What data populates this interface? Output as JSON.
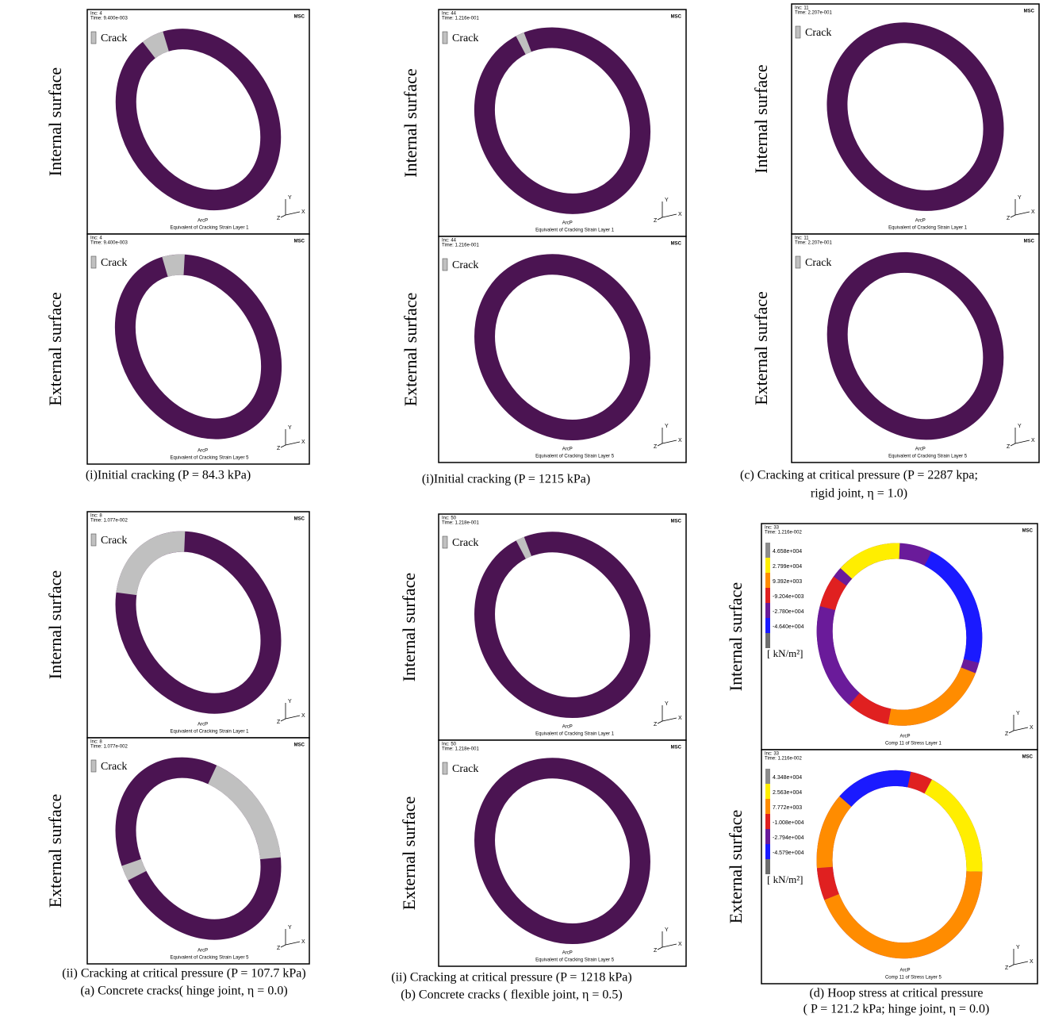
{
  "figure": {
    "side_labels": {
      "internal": "Internal surface",
      "external": "External surface"
    },
    "triad": [
      "Y",
      "X",
      "Z"
    ],
    "groups": [
      {
        "captions": [
          "(i)Initial cracking (P = 84.3 kPa)"
        ],
        "panels": [
          {
            "inc": "Inc: 4",
            "time": "Time: 9.400e-003",
            "legend": "Crack",
            "model": "ArcP",
            "subtitle": "Equivalent of Cracking Strain Layer 1",
            "logo": "MSC"
          },
          {
            "inc": "Inc: 4",
            "time": "Time: 9.400e-003",
            "legend": "Crack",
            "model": "ArcP",
            "subtitle": "Equivalent of Cracking Strain Layer 5",
            "logo": "MSC"
          }
        ]
      },
      {
        "captions": [
          "(i)Initial cracking (P = 1215 kPa)"
        ],
        "panels": [
          {
            "inc": "Inc: 44",
            "time": "Time: 1.216e-001",
            "legend": "Crack",
            "model": "ArcP",
            "subtitle": "Equivalent of Cracking Strain Layer 1",
            "logo": "MSC"
          },
          {
            "inc": "Inc: 44",
            "time": "Time: 1.216e-001",
            "legend": "Crack",
            "model": "ArcP",
            "subtitle": "Equivalent of Cracking Strain Layer 5",
            "logo": "MSC"
          }
        ]
      },
      {
        "captions": [
          "(c) Cracking at critical pressure (P = 2287 kpa;",
          "rigid joint, η = 1.0)"
        ],
        "panels": [
          {
            "inc": "Inc: 11",
            "time": "Time: 2.207e-001",
            "legend": "Crack",
            "model": "ArcP",
            "subtitle": "Equivalent of Cracking Strain Layer 1",
            "logo": "MSC"
          },
          {
            "inc": "Inc: 11",
            "time": "Time: 2.207e-001",
            "legend": "Crack",
            "model": "ArcP",
            "subtitle": "Equivalent of Cracking Strain Layer 5",
            "logo": "MSC"
          }
        ]
      },
      {
        "captions": [
          "(ii) Cracking at critical pressure (P = 107.7 kPa)",
          "(a) Concrete cracks( hinge joint, η = 0.0)"
        ],
        "panels": [
          {
            "inc": "Inc: 8",
            "time": "Time: 1.077e-002",
            "legend": "Crack",
            "model": "ArcP",
            "subtitle": "Equivalent of Cracking Strain Layer 1",
            "logo": "MSC"
          },
          {
            "inc": "Inc: 8",
            "time": "Time: 1.077e-002",
            "legend": "Crack",
            "model": "ArcP",
            "subtitle": "Equivalent of Cracking Strain Layer 5",
            "logo": "MSC"
          }
        ]
      },
      {
        "captions": [
          "(ii) Cracking at critical pressure (P = 1218 kPa)",
          "(b) Concrete cracks ( flexible joint, η = 0.5)"
        ],
        "panels": [
          {
            "inc": "Inc: 50",
            "time": "Time: 1.218e-001",
            "legend": "Crack",
            "model": "ArcP",
            "subtitle": "Equivalent of Cracking Strain Layer 1",
            "logo": "MSC"
          },
          {
            "inc": "Inc: 50",
            "time": "Time: 1.218e-001",
            "legend": "Crack",
            "model": "ArcP",
            "subtitle": "Equivalent of Cracking Strain Layer 5",
            "logo": "MSC"
          }
        ]
      },
      {
        "captions": [
          "(d) Hoop stress at critical pressure",
          "( P = 121.2 kPa; hinge joint, η = 0.0)"
        ],
        "panels": [
          {
            "inc": "Inc: 33",
            "time": "Time: 1.216e-002",
            "legend_values": [
              "4.658e+004",
              "2.799e+004",
              "9.392e+003",
              "-9.204e+003",
              "-2.780e+004",
              "-4.640e+004"
            ],
            "unit": "[ kN/m²]",
            "model": "ArcP",
            "subtitle": "Comp 11 of Stress Layer 1",
            "logo": "MSC"
          },
          {
            "inc": "Inc: 33",
            "time": "Time: 1.216e-002",
            "legend_values": [
              "4.348e+004",
              "2.563e+004",
              "7.772e+003",
              "-1.008e+004",
              "-2.794e+004",
              "-4.579e+004"
            ],
            "unit": "[ kN/m²]",
            "model": "ArcP",
            "subtitle": "Comp 11 of Stress Layer 5",
            "logo": "MSC"
          }
        ]
      }
    ]
  }
}
